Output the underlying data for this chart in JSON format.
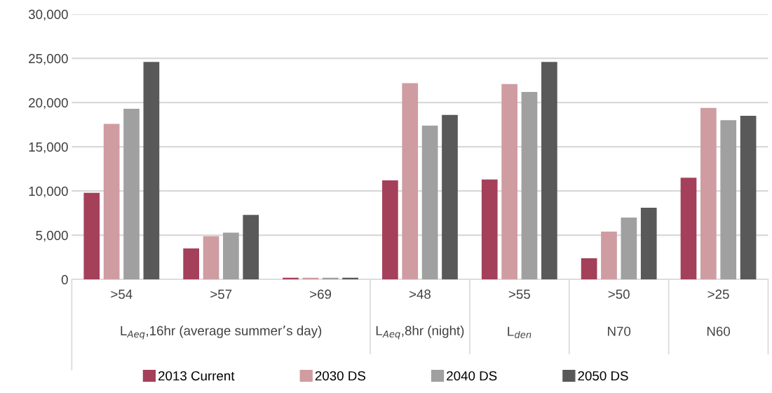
{
  "chart_data": {
    "type": "bar",
    "categories": [
      ">54",
      ">57",
      ">69",
      ">48",
      ">55",
      ">50",
      ">25"
    ],
    "series": [
      {
        "name": "2013 Current",
        "color": "#a5405a",
        "values": [
          9800,
          3500,
          200,
          11200,
          11300,
          2400,
          11500
        ]
      },
      {
        "name": "2030 DS",
        "color": "#cf9ca2",
        "values": [
          17600,
          4900,
          200,
          22200,
          22100,
          5400,
          19400
        ]
      },
      {
        "name": "2040 DS",
        "color": "#a0a0a0",
        "values": [
          19300,
          5300,
          200,
          17400,
          21200,
          7000,
          18000
        ]
      },
      {
        "name": "2050 DS",
        "color": "#595959",
        "values": [
          24600,
          7300,
          200,
          18600,
          24600,
          8100,
          18500
        ]
      }
    ],
    "annotations": [
      "L$_{Aeq}$,16hr (average summer’s day)",
      "L$_{Aeq}$,8hr (night)",
      "L$_{den}$",
      "N70",
      "N60"
    ],
    "ylim": [
      0,
      30000
    ],
    "yticks": [
      {
        "value": 0,
        "label": "0"
      },
      {
        "value": 5000,
        "label": "5,000"
      },
      {
        "value": 10000,
        "label": "10,000"
      },
      {
        "value": 15000,
        "label": "15,000"
      },
      {
        "value": 20000,
        "label": "20,000"
      },
      {
        "value": 25000,
        "label": "25,000"
      },
      {
        "value": 30000,
        "label": "30,000"
      }
    ],
    "grid": "y",
    "legend": "bottom"
  }
}
